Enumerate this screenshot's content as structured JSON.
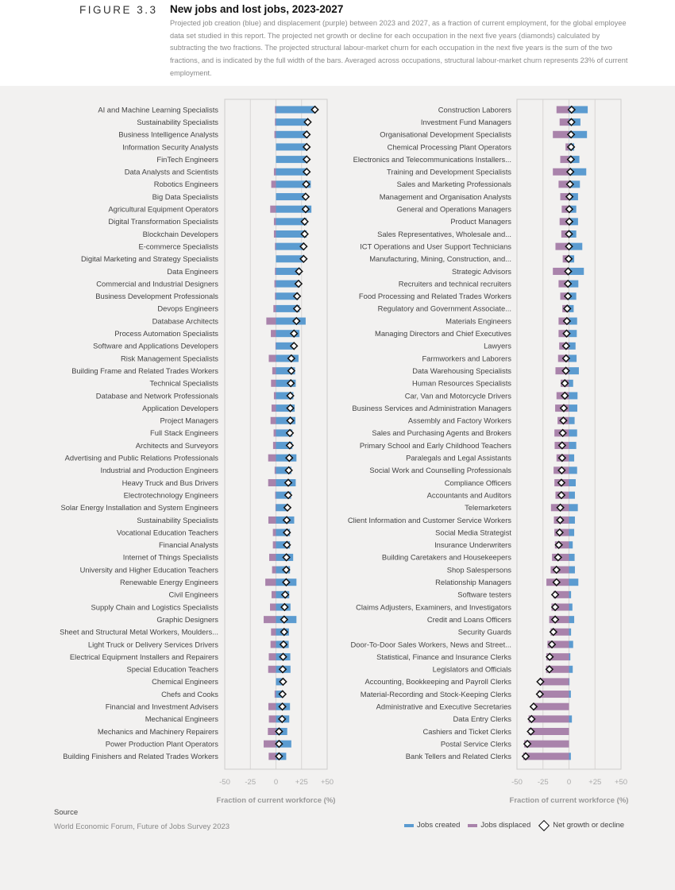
{
  "header": {
    "figure_number": "FIGURE 3.3",
    "title": "New jobs and lost jobs, 2023-2027",
    "subtitle": "Projected job creation (blue) and displacement (purple) between 2023 and 2027, as a fraction of current employment, for the global employee data set studied in this report. The projected net growth or decline for each occupation in the next five years (diamonds) calculated by subtracting the two fractions. The projected structural labour-market churn for each occupation in the next five years is the sum of the two fractions, and is indicated by the full width of the bars. Averaged across occupations, structural labour-market churn represents 23% of current employment."
  },
  "footer": {
    "source_heading": "Source",
    "source_text": "World Economic Forum, Future of Jobs Survey 2023"
  },
  "legend": {
    "created": "Jobs created",
    "displaced": "Jobs displaced",
    "net": "Net growth or decline"
  },
  "colors": {
    "created": "#5b9bd0",
    "displaced": "#a983ab",
    "net": "#111111"
  },
  "chart_data": [
    {
      "type": "bar",
      "orientation": "horizontal diverging",
      "xlabel": "Fraction of current workforce (%)",
      "xlim": [
        -50,
        50
      ],
      "xticks": [
        "-50",
        "-25",
        "0",
        "+25",
        "+50"
      ],
      "grid": true,
      "rows": [
        {
          "label": "AI and Machine Learning Specialists",
          "created": 39,
          "displaced": 1,
          "net": 38
        },
        {
          "label": "Sustainability Specialists",
          "created": 32,
          "displaced": 1,
          "net": 31
        },
        {
          "label": "Business Intelligence Analysts",
          "created": 31.5,
          "displaced": 1.5,
          "net": 30
        },
        {
          "label": "Information Security Analysts",
          "created": 30.5,
          "displaced": 0,
          "net": 30
        },
        {
          "label": "FinTech Engineers",
          "created": 30.5,
          "displaced": 0,
          "net": 30
        },
        {
          "label": "Data Analysts and Scientists",
          "created": 31,
          "displaced": 2,
          "net": 30
        },
        {
          "label": "Robotics Engineers",
          "created": 34,
          "displaced": 4.6,
          "net": 29.5
        },
        {
          "label": "Big Data Specialists",
          "created": 29,
          "displaced": 0,
          "net": 29
        },
        {
          "label": "Agricultural Equipment Operators",
          "created": 34.6,
          "displaced": 5.6,
          "net": 29
        },
        {
          "label": "Digital Transformation Specialists",
          "created": 30,
          "displaced": 2,
          "net": 28
        },
        {
          "label": "Blockchain Developers",
          "created": 30,
          "displaced": 2,
          "net": 28
        },
        {
          "label": "E-commerce Specialists",
          "created": 28,
          "displaced": 1,
          "net": 27
        },
        {
          "label": "Digital Marketing and Strategy Specialists",
          "created": 27,
          "displaced": 0,
          "net": 27
        },
        {
          "label": "Data Engineers",
          "created": 24,
          "displaced": 1,
          "net": 22.5
        },
        {
          "label": "Commercial and Industrial Designers",
          "created": 23.5,
          "displaced": 1.5,
          "net": 22
        },
        {
          "label": "Business Development Professionals",
          "created": 22,
          "displaced": 1,
          "net": 20.6
        },
        {
          "label": "Devops Engineers",
          "created": 23,
          "displaced": 2.5,
          "net": 20.6
        },
        {
          "label": "Database Architects",
          "created": 29,
          "displaced": 9.4,
          "net": 20
        },
        {
          "label": "Process Automation Specialists",
          "created": 23,
          "displaced": 5,
          "net": 17.6
        },
        {
          "label": "Software and Applications Developers",
          "created": 18,
          "displaced": 0.5,
          "net": 17.6
        },
        {
          "label": "Risk Management Specialists",
          "created": 22,
          "displaced": 7,
          "net": 15
        },
        {
          "label": "Building Frame and Related Trades Workers",
          "created": 18.6,
          "displaced": 3.6,
          "net": 15
        },
        {
          "label": "Technical Specialists",
          "created": 19.3,
          "displaced": 4.8,
          "net": 14.5
        },
        {
          "label": "Database and Network Professionals",
          "created": 17,
          "displaced": 2,
          "net": 14
        },
        {
          "label": "Application Developers",
          "created": 18.3,
          "displaced": 4.3,
          "net": 14
        },
        {
          "label": "Project Managers",
          "created": 19,
          "displaced": 5.3,
          "net": 14
        },
        {
          "label": "Full Stack Engineers",
          "created": 16,
          "displaced": 2.3,
          "net": 13.6
        },
        {
          "label": "Architects and Surveyors",
          "created": 16,
          "displaced": 2.8,
          "net": 13.5
        },
        {
          "label": "Advertising and Public Relations Professionals",
          "created": 20,
          "displaced": 7.6,
          "net": 13
        },
        {
          "label": "Industrial and Production Engineers",
          "created": 15,
          "displaced": 1.3,
          "net": 12.5
        },
        {
          "label": "Heavy Truck and Bus Drivers",
          "created": 19.3,
          "displaced": 7.6,
          "net": 12
        },
        {
          "label": "Electrotechnology Engineers",
          "created": 14.8,
          "displaced": 0.8,
          "net": 12
        },
        {
          "label": "Solar Energy Installation and System Engineers",
          "created": 12,
          "displaced": 0.5,
          "net": 11.2
        },
        {
          "label": "Sustainability Specialists",
          "created": 17.8,
          "displaced": 7.4,
          "net": 10.5
        },
        {
          "label": "Vocational Education Teachers",
          "created": 13.7,
          "displaced": 3,
          "net": 10.7
        },
        {
          "label": "Financial Analysts",
          "created": 13.7,
          "displaced": 3,
          "net": 10.7
        },
        {
          "label": "Internet of Things Specialists",
          "created": 16.8,
          "displaced": 6.6,
          "net": 10.2
        },
        {
          "label": "University and Higher Education Teachers",
          "created": 13.7,
          "displaced": 3.8,
          "net": 10
        },
        {
          "label": "Renewable Energy Engineers",
          "created": 20,
          "displaced": 10.4,
          "net": 10
        },
        {
          "label": "Civil Engineers",
          "created": 13,
          "displaced": 4.3,
          "net": 9
        },
        {
          "label": "Supply Chain and Logistics Specialists",
          "created": 14.2,
          "displaced": 5.8,
          "net": 8.4
        },
        {
          "label": "Graphic Designers",
          "created": 20,
          "displaced": 12,
          "net": 8
        },
        {
          "label": "Sheet and Structural Metal Workers, Moulders...",
          "created": 12.7,
          "displaced": 4.8,
          "net": 8
        },
        {
          "label": "Light Truck or Delivery Services Drivers",
          "created": 12.5,
          "displaced": 5.3,
          "net": 7.4
        },
        {
          "label": "Electrical Equipment Installers and Repairers",
          "created": 14,
          "displaced": 7,
          "net": 7
        },
        {
          "label": "Special Education Teachers",
          "created": 14.2,
          "displaced": 7.6,
          "net": 6.6
        },
        {
          "label": "Chemical Engineers",
          "created": 7.6,
          "displaced": 0,
          "net": 6.9
        },
        {
          "label": "Chefs and Cooks",
          "created": 7.6,
          "displaced": 1.3,
          "net": 6.4
        },
        {
          "label": "Financial and Investment Advisers",
          "created": 13.7,
          "displaced": 7.4,
          "net": 6.3
        },
        {
          "label": "Mechanical Engineers",
          "created": 13,
          "displaced": 6.9,
          "net": 6
        },
        {
          "label": "Mechanics and Machinery Repairers",
          "created": 11,
          "displaced": 7.9,
          "net": 3
        },
        {
          "label": "Power Production Plant Operators",
          "created": 15,
          "displaced": 12,
          "net": 3
        },
        {
          "label": "Building Finishers and Related Trades Workers",
          "created": 10,
          "displaced": 7.1,
          "net": 3
        }
      ]
    },
    {
      "type": "bar",
      "orientation": "horizontal diverging",
      "xlabel": "Fraction of current workforce (%)",
      "xlim": [
        -50,
        50
      ],
      "xticks": [
        "-50",
        "-25",
        "0",
        "+25",
        "+50"
      ],
      "grid": true,
      "rows": [
        {
          "label": "Construction Laborers",
          "created": 18,
          "displaced": 12,
          "net": 2.5
        },
        {
          "label": "Investment Fund Managers",
          "created": 11,
          "displaced": 9,
          "net": 2.3
        },
        {
          "label": "Organisational Development Specialists",
          "created": 17.3,
          "displaced": 15.5,
          "net": 2
        },
        {
          "label": "Chemical Processing Plant Operators",
          "created": 5,
          "displaced": 3.3,
          "net": 2
        },
        {
          "label": "Electronics and Telecommunications Installers...",
          "created": 10,
          "displaced": 8.4,
          "net": 1.8
        },
        {
          "label": "Training and Development Specialists",
          "created": 16.6,
          "displaced": 15.5,
          "net": 1.3
        },
        {
          "label": "Sales and Marketing Professionals",
          "created": 10.5,
          "displaced": 10,
          "net": 1
        },
        {
          "label": "Management and Organisation Analysts",
          "created": 8.7,
          "displaced": 8.4,
          "net": 0.5
        },
        {
          "label": "General and Operations Managers",
          "created": 7,
          "displaced": 7,
          "net": 0.3
        },
        {
          "label": "Product Managers",
          "created": 8.7,
          "displaced": 9,
          "net": 0.3
        },
        {
          "label": "Sales Representatives, Wholesale and...",
          "created": 7,
          "displaced": 7.4,
          "net": 0
        },
        {
          "label": "ICT Operations and User Support Technicians",
          "created": 12.8,
          "displaced": 13,
          "net": 0
        },
        {
          "label": "Manufacturing, Mining, Construction, and...",
          "created": 5,
          "displaced": 6,
          "net": -0.3
        },
        {
          "label": "Strategic Advisors",
          "created": 14.3,
          "displaced": 15.5,
          "net": -0.8
        },
        {
          "label": "Recruiters and technical recruiters",
          "created": 9,
          "displaced": 10,
          "net": -1
        },
        {
          "label": "Food Processing and Related Trades Workers",
          "created": 7,
          "displaced": 8.4,
          "net": -1
        },
        {
          "label": "Regulatory and Government Associate...",
          "created": 4.5,
          "displaced": 6.4,
          "net": -1.7
        },
        {
          "label": "Materials Engineers",
          "created": 7.8,
          "displaced": 10,
          "net": -2
        },
        {
          "label": "Managing Directors and Chief Executives",
          "created": 7.5,
          "displaced": 10,
          "net": -2.3
        },
        {
          "label": "Lawyers",
          "created": 6.3,
          "displaced": 9.4,
          "net": -2.8
        },
        {
          "label": "Farmworkers and Laborers",
          "created": 7.3,
          "displaced": 10.5,
          "net": -2.8
        },
        {
          "label": "Data Warehousing Specialists",
          "created": 9.5,
          "displaced": 13,
          "net": -3
        },
        {
          "label": "Human Resources Specialists",
          "created": 4,
          "displaced": 8,
          "net": -4
        },
        {
          "label": "Car, Van and Motorcycle Drivers",
          "created": 8.2,
          "displaced": 12,
          "net": -4
        },
        {
          "label": "Business Services and Administration Managers",
          "created": 8,
          "displaced": 13.3,
          "net": -5
        },
        {
          "label": "Assembly and Factory Workers",
          "created": 5.4,
          "displaced": 11,
          "net": -5.4
        },
        {
          "label": "Sales and Purchasing Agents and Brokers",
          "created": 7.8,
          "displaced": 14,
          "net": -6
        },
        {
          "label": "Primary School and Early Childhood Teachers",
          "created": 7,
          "displaced": 13.8,
          "net": -6.6
        },
        {
          "label": "Paralegals and Legal Assistants",
          "created": 5,
          "displaced": 12,
          "net": -6.6
        },
        {
          "label": "Social Work and Counselling Professionals",
          "created": 7.8,
          "displaced": 14.8,
          "net": -7
        },
        {
          "label": "Compliance Officers",
          "created": 6.5,
          "displaced": 14,
          "net": -7.3
        },
        {
          "label": "Accountants and Auditors",
          "created": 5.7,
          "displaced": 13,
          "net": -7.3
        },
        {
          "label": "Telemarketers",
          "created": 8.5,
          "displaced": 17.3,
          "net": -8.3
        },
        {
          "label": "Client Information and Customer Service Workers",
          "created": 5.7,
          "displaced": 14.5,
          "net": -8.5
        },
        {
          "label": "Social Media Strategist",
          "created": 5,
          "displaced": 14,
          "net": -9
        },
        {
          "label": "Insurance Underwriters",
          "created": 3.6,
          "displaced": 13.5,
          "net": -9.8
        },
        {
          "label": "Building Caretakers and Housekeepers",
          "created": 5.4,
          "displaced": 16.3,
          "net": -10.5
        },
        {
          "label": "Shop Salespersons",
          "created": 5.7,
          "displaced": 17.6,
          "net": -12
        },
        {
          "label": "Relationship Managers",
          "created": 9,
          "displaced": 21.7,
          "net": -12
        },
        {
          "label": "Software testers",
          "created": 2,
          "displaced": 15,
          "net": -13.3
        },
        {
          "label": "Claims Adjusters, Examiners, and Investigators",
          "created": 3.3,
          "displaced": 16.8,
          "net": -13.3
        },
        {
          "label": "Credit and Loans Officers",
          "created": 5,
          "displaced": 19,
          "net": -13.3
        },
        {
          "label": "Security Guards",
          "created": 2,
          "displaced": 17.6,
          "net": -15
        },
        {
          "label": "Door-To-Door Sales Workers, News and Street...",
          "created": 4,
          "displaced": 20.7,
          "net": -16.4
        },
        {
          "label": "Statistical, Finance and Insurance Clerks",
          "created": 1.3,
          "displaced": 21.7,
          "net": -18.5
        },
        {
          "label": "Legislators and Officials",
          "created": 3.6,
          "displaced": 22,
          "net": -18.8
        },
        {
          "label": "Accounting, Bookkeeping and Payroll Clerks",
          "created": 0.5,
          "displaced": 27,
          "net": -27.5
        },
        {
          "label": "Material-Recording and Stock-Keeping Clerks",
          "created": 1.8,
          "displaced": 30,
          "net": -28
        },
        {
          "label": "Administrative and Executive Secretaries",
          "created": 0,
          "displaced": 34,
          "net": -34
        },
        {
          "label": "Data Entry Clerks",
          "created": 2.8,
          "displaced": 38.8,
          "net": -36
        },
        {
          "label": "Cashiers and Ticket Clerks",
          "created": 0,
          "displaced": 38.8,
          "net": -36.7
        },
        {
          "label": "Postal Service Clerks",
          "created": 0,
          "displaced": 43,
          "net": -40
        },
        {
          "label": "Bank Tellers and Related Clerks",
          "created": 1.8,
          "displaced": 44,
          "net": -41.6
        }
      ]
    }
  ]
}
